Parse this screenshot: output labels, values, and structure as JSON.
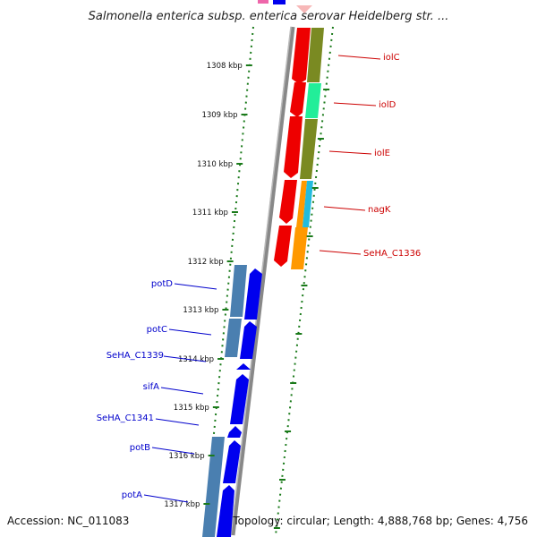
{
  "title": "Salmonella enterica subsp. enterica serovar Heidelberg str. ...",
  "footer": {
    "accession": "Accession: NC_011083",
    "topology": "Topology: circular; Length: 4,888,768 bp; Genes: 4,756"
  },
  "ticks": [
    {
      "label": "1308 kbp"
    },
    {
      "label": "1309 kbp"
    },
    {
      "label": "1310 kbp"
    },
    {
      "label": "1311 kbp"
    },
    {
      "label": "1312 kbp"
    },
    {
      "label": "1313 kbp"
    },
    {
      "label": "1314 kbp"
    },
    {
      "label": "1315 kbp"
    },
    {
      "label": "1316 kbp"
    },
    {
      "label": "1317 kbp"
    }
  ],
  "genes_right": [
    {
      "name": "iolC"
    },
    {
      "name": "iolD"
    },
    {
      "name": "iolE"
    },
    {
      "name": "nagK"
    },
    {
      "name": "SeHA_C1336"
    }
  ],
  "genes_left": [
    {
      "name": "potD"
    },
    {
      "name": "potC"
    },
    {
      "name": "SeHA_C1339"
    },
    {
      "name": "sifA"
    },
    {
      "name": "SeHA_C1341"
    },
    {
      "name": "potB"
    },
    {
      "name": "potA"
    }
  ],
  "colors": {
    "forward_gene": "#ee0000",
    "reverse_gene": "#0000ee",
    "cog_olive": "#7a8a22",
    "cog_green": "#22ee99",
    "cog_cyan": "#22bbdd",
    "cog_orange": "#ff9900",
    "cog_steel": "#4a7fb0",
    "backbone": "#888888",
    "ticks": "#1a7a1a",
    "right_label": "#cc0000",
    "left_label": "#0000cc"
  }
}
